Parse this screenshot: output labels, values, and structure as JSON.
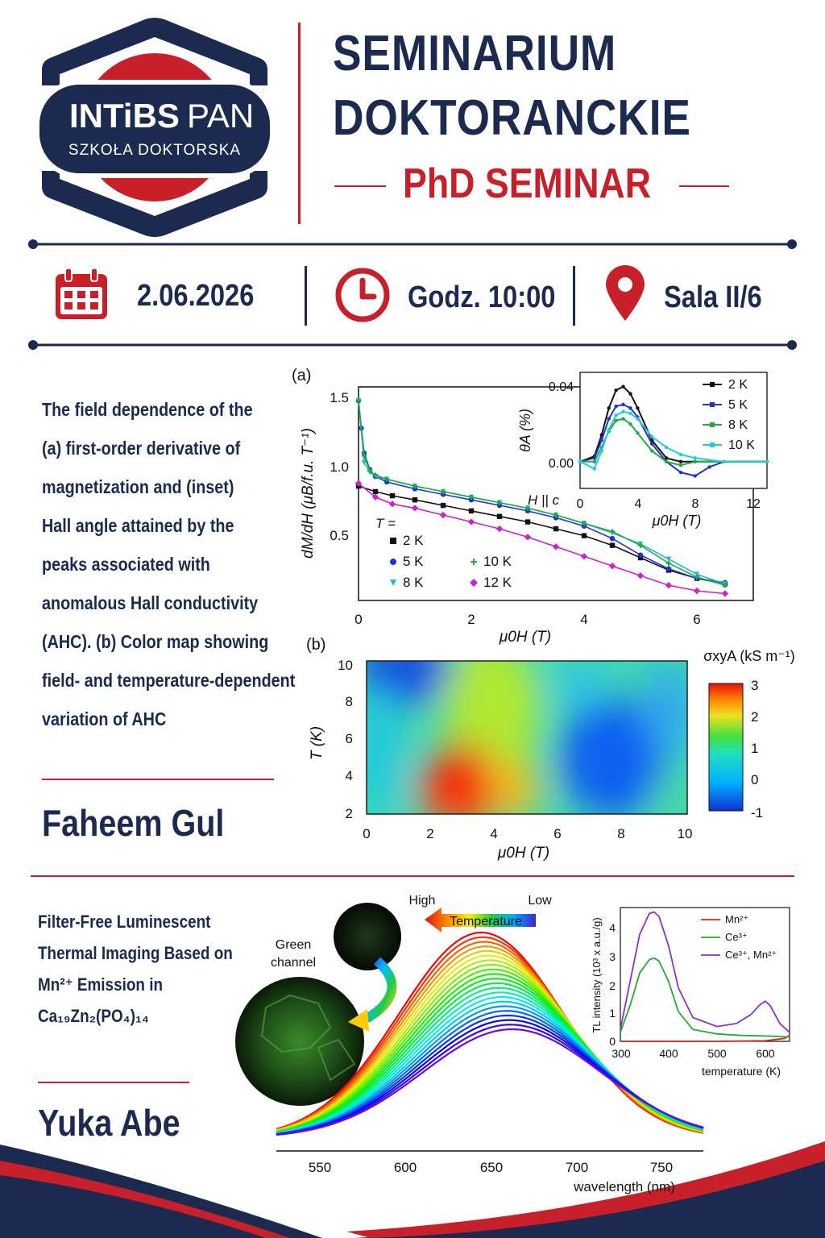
{
  "logo": {
    "brand_bold": "INTiBS",
    "brand_light": "PAN",
    "subtitle": "SZKOŁA DOKTORSKA"
  },
  "header": {
    "title_line1": "SEMINARIUM",
    "title_line2": "DOKTORANCKIE",
    "subtitle": "PhD SEMINAR"
  },
  "info": {
    "date": "2.06.2026",
    "time": "Godz. 10:00",
    "room": "Sala II/6"
  },
  "talk1": {
    "description_lines": [
      "The field dependence of the",
      "(a) first-order derivative of",
      "magnetization and (inset)",
      "Hall angle attained by the",
      "peaks associated with",
      "anomalous Hall conductivity",
      "(AHC). (b) Color map showing",
      "field- and temperature-dependent",
      "variation of AHC"
    ],
    "speaker": "Faheem Gul"
  },
  "talk2": {
    "title_lines": [
      "Filter-Free Luminescent",
      "Thermal Imaging Based on",
      "Mn²⁺ Emission in",
      "Ca₁₉Zn₂(PO₄)₁₄"
    ],
    "speaker": "Yuka Abe"
  },
  "colors": {
    "navy": "#1b2a4e",
    "red": "#c8202a"
  },
  "icons": [
    "calendar-icon",
    "clock-icon",
    "location-pin-icon"
  ],
  "chart_data": [
    {
      "id": "a-main",
      "type": "line",
      "panel_label": "(a)",
      "xlabel": "μ0H (T)",
      "ylabel": "dM/dH (μB/f.u. T⁻¹)",
      "xlim": [
        0,
        6.8
      ],
      "ylim": [
        0.05,
        1.6
      ],
      "xticks": [
        "0",
        "2",
        "4",
        "6"
      ],
      "yticks": [
        "0.5",
        "1.0",
        "1.5"
      ],
      "legend_title": "T =",
      "series": [
        {
          "name": "2 K",
          "color": "#111111",
          "marker": "square",
          "x": [
            0,
            0.3,
            0.6,
            1,
            1.5,
            2,
            2.5,
            3,
            3.5,
            4,
            4.5,
            5,
            5.5,
            6,
            6.5
          ],
          "y": [
            0.88,
            0.84,
            0.81,
            0.78,
            0.74,
            0.7,
            0.66,
            0.62,
            0.57,
            0.52,
            0.45,
            0.36,
            0.27,
            0.21,
            0.17
          ]
        },
        {
          "name": "5 K",
          "color": "#2233cc",
          "marker": "circle",
          "x": [
            0,
            0.05,
            0.1,
            0.2,
            0.3,
            0.5,
            1,
            1.5,
            2,
            2.5,
            3,
            3.5,
            4,
            4.5,
            5,
            5.5,
            6,
            6.5
          ],
          "y": [
            1.5,
            1.3,
            1.12,
            1.0,
            0.95,
            0.91,
            0.86,
            0.82,
            0.78,
            0.74,
            0.7,
            0.65,
            0.59,
            0.5,
            0.38,
            0.28,
            0.21,
            0.18
          ]
        },
        {
          "name": "8 K",
          "color": "#22bbcc",
          "marker": "triangle-down",
          "x": [
            0,
            0.1,
            0.2,
            0.3,
            0.5,
            1,
            1.5,
            2,
            2.5,
            3,
            3.5,
            4,
            4.5,
            5,
            5.5,
            6,
            6.5
          ],
          "y": [
            1.5,
            1.05,
            0.98,
            0.95,
            0.93,
            0.88,
            0.84,
            0.8,
            0.76,
            0.72,
            0.67,
            0.61,
            0.54,
            0.46,
            0.35,
            0.24,
            0.17
          ]
        },
        {
          "name": "10 K",
          "color": "#22aa44",
          "marker": "plus",
          "x": [
            0,
            0.1,
            0.2,
            0.3,
            0.5,
            1,
            1.5,
            2,
            2.5,
            3,
            3.5,
            4,
            4.5,
            5,
            5.5,
            6,
            6.5
          ],
          "y": [
            1.5,
            1.1,
            0.99,
            0.96,
            0.93,
            0.88,
            0.84,
            0.8,
            0.76,
            0.72,
            0.67,
            0.61,
            0.55,
            0.45,
            0.32,
            0.22,
            0.16
          ]
        },
        {
          "name": "12 K",
          "color": "#cc22cc",
          "marker": "diamond",
          "x": [
            0,
            0.3,
            0.6,
            1,
            1.5,
            2,
            2.5,
            3,
            3.5,
            4,
            4.5,
            5,
            5.5,
            6,
            6.5
          ],
          "y": [
            0.9,
            0.8,
            0.75,
            0.72,
            0.67,
            0.62,
            0.57,
            0.51,
            0.44,
            0.37,
            0.3,
            0.23,
            0.16,
            0.12,
            0.1
          ]
        }
      ]
    },
    {
      "id": "a-inset",
      "type": "line",
      "xlabel": "μ0H (T)",
      "ylabel": "θA (%)",
      "annotation": "H || c",
      "xlim": [
        0,
        13
      ],
      "ylim": [
        -0.015,
        0.05
      ],
      "xticks": [
        "0",
        "4",
        "8",
        "12"
      ],
      "yticks": [
        "0.00",
        "0.04"
      ],
      "series": [
        {
          "name": "2 K",
          "color": "#111111",
          "x": [
            0,
            1,
            1.5,
            2,
            2.5,
            3,
            3.5,
            4,
            5,
            6,
            7,
            8,
            10,
            13
          ],
          "y": [
            0,
            0.003,
            0.015,
            0.03,
            0.04,
            0.042,
            0.038,
            0.03,
            0.012,
            0.002,
            0,
            0,
            0,
            0
          ]
        },
        {
          "name": "5 K",
          "color": "#2233cc",
          "x": [
            0,
            1,
            1.5,
            2,
            2.5,
            3,
            3.5,
            4,
            5,
            6,
            7,
            8,
            9,
            10,
            13
          ],
          "y": [
            0,
            0.002,
            0.012,
            0.024,
            0.031,
            0.032,
            0.03,
            0.025,
            0.01,
            0,
            -0.006,
            -0.008,
            -0.003,
            0,
            0
          ]
        },
        {
          "name": "8 K",
          "color": "#22aa44",
          "x": [
            0,
            1,
            1.5,
            2,
            2.5,
            3,
            3.5,
            4,
            5,
            6,
            7,
            8,
            10,
            13
          ],
          "y": [
            0,
            0,
            0.008,
            0.017,
            0.023,
            0.024,
            0.021,
            0.016,
            0.006,
            0,
            -0.002,
            0,
            0,
            0
          ]
        },
        {
          "name": "10 K",
          "color": "#22ccdd",
          "x": [
            0,
            1,
            1.5,
            2,
            2.5,
            3,
            3.5,
            4,
            5,
            6,
            7,
            8,
            10,
            13
          ],
          "y": [
            0,
            -0.004,
            0.006,
            0.018,
            0.026,
            0.028,
            0.027,
            0.024,
            0.014,
            0.008,
            0.004,
            0.002,
            0,
            0
          ]
        }
      ]
    },
    {
      "id": "b-map",
      "type": "heatmap",
      "panel_label": "(b)",
      "xlabel": "μ0H (T)",
      "ylabel": "T (K)",
      "xlim": [
        0,
        10
      ],
      "ylim": [
        2,
        10
      ],
      "xticks": [
        "0",
        "2",
        "4",
        "6",
        "8",
        "10"
      ],
      "yticks": [
        "2",
        "4",
        "6",
        "8",
        "10"
      ],
      "colorbar_label": "σxyA (kS m⁻¹)",
      "colorbar_ticks": [
        "3",
        "2",
        "1",
        "0",
        "-1"
      ],
      "zlim": [
        -1,
        3
      ]
    },
    {
      "id": "c-spectra",
      "type": "line",
      "xlabel": "wavelength (nm)",
      "xlim": [
        525,
        775
      ],
      "xticks": [
        "550",
        "600",
        "650",
        "700",
        "750"
      ],
      "temperature_arrow": {
        "label": "Temperature",
        "left": "High",
        "right": "Low"
      },
      "image_labels": [
        "Green",
        "channel"
      ]
    },
    {
      "id": "c-inset",
      "type": "line",
      "xlabel": "temperature (K)",
      "ylabel": "TL intensity (10³ x a.u./g)",
      "xlim": [
        300,
        650
      ],
      "ylim": [
        0,
        4.5
      ],
      "xticks": [
        "300",
        "400",
        "500",
        "600"
      ],
      "yticks": [
        "0",
        "1",
        "2",
        "3",
        "4"
      ],
      "series": [
        {
          "name": "Mn²⁺",
          "color": "#dd2222",
          "x": [
            300,
            400,
            500,
            600,
            640,
            650
          ],
          "y": [
            0,
            0,
            0,
            0.02,
            0.1,
            0.2
          ]
        },
        {
          "name": "Ce³⁺",
          "color": "#22aa33",
          "x": [
            300,
            320,
            340,
            360,
            370,
            380,
            400,
            420,
            450,
            500,
            550,
            600,
            650
          ],
          "y": [
            0.3,
            1.2,
            2.3,
            2.75,
            2.8,
            2.7,
            2.0,
            1.0,
            0.4,
            0.25,
            0.2,
            0.18,
            0.15
          ]
        },
        {
          "name": "Ce³⁺, Mn²⁺",
          "color": "#8833cc",
          "x": [
            300,
            320,
            340,
            360,
            370,
            380,
            400,
            420,
            450,
            500,
            540,
            570,
            590,
            600,
            610,
            630,
            650
          ],
          "y": [
            0.4,
            2.0,
            3.6,
            4.3,
            4.35,
            4.2,
            3.2,
            1.8,
            0.8,
            0.5,
            0.6,
            0.9,
            1.25,
            1.35,
            1.2,
            0.6,
            0.3
          ]
        }
      ]
    }
  ]
}
